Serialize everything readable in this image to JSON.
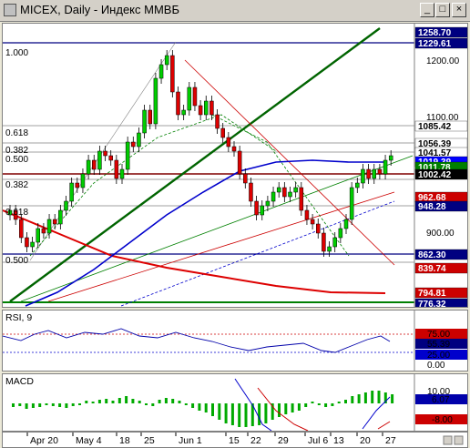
{
  "window": {
    "title": "MICEX, Daily - Индекс ММВБ",
    "buttons": {
      "minimize": "_",
      "maximize": "□",
      "close": "×"
    }
  },
  "price_panel": {
    "fib_labels_left": [
      "1.000",
      "0.618",
      "0.382",
      "0.500",
      "0.382",
      "0.618",
      "0.500"
    ],
    "axis_ticks": [
      "1200.00",
      "1100.00",
      "900.00"
    ],
    "price_tags": [
      {
        "text": "1258.70",
        "color": "#000080",
        "text_color": "#ffffff"
      },
      {
        "text": "1229.61",
        "color": "#000080",
        "text_color": "#ffffff"
      },
      {
        "text": "1085.42",
        "color": "#ffffff",
        "text_color": "#000000"
      },
      {
        "text": "1056.39",
        "color": "#ffffff",
        "text_color": "#000000"
      },
      {
        "text": "1041.57",
        "color": "#ffffff",
        "text_color": "#000000"
      },
      {
        "text": "1019.39",
        "color": "#0000ff",
        "text_color": "#ffffff"
      },
      {
        "text": "1011.78",
        "color": "#008000",
        "text_color": "#ffffff"
      },
      {
        "text": "1002.42",
        "color": "#000000",
        "text_color": "#ffffff"
      },
      {
        "text": "962.68",
        "color": "#cc0000",
        "text_color": "#ffffff"
      },
      {
        "text": "948.28",
        "color": "#000080",
        "text_color": "#ffffff"
      },
      {
        "text": "862.30",
        "color": "#000080",
        "text_color": "#ffffff"
      },
      {
        "text": "839.74",
        "color": "#cc0000",
        "text_color": "#ffffff"
      },
      {
        "text": "794.81",
        "color": "#cc0000",
        "text_color": "#ffffff"
      },
      {
        "text": "776.32",
        "color": "#000080",
        "text_color": "#ffffff"
      }
    ]
  },
  "rsi_panel": {
    "title": "RSI, 9",
    "ticks": [
      "75.00",
      "55.39",
      "25.00",
      "0.00"
    ]
  },
  "macd_panel": {
    "title": "MACD",
    "ticks": [
      "10.00",
      "6.07",
      "-8.00"
    ]
  },
  "x_axis": {
    "dates": [
      "Apr 20",
      "May 4",
      "18",
      "25",
      "Jun 1",
      "15",
      "22",
      "29",
      "Jul 6",
      "13",
      "20",
      "27"
    ]
  }
}
